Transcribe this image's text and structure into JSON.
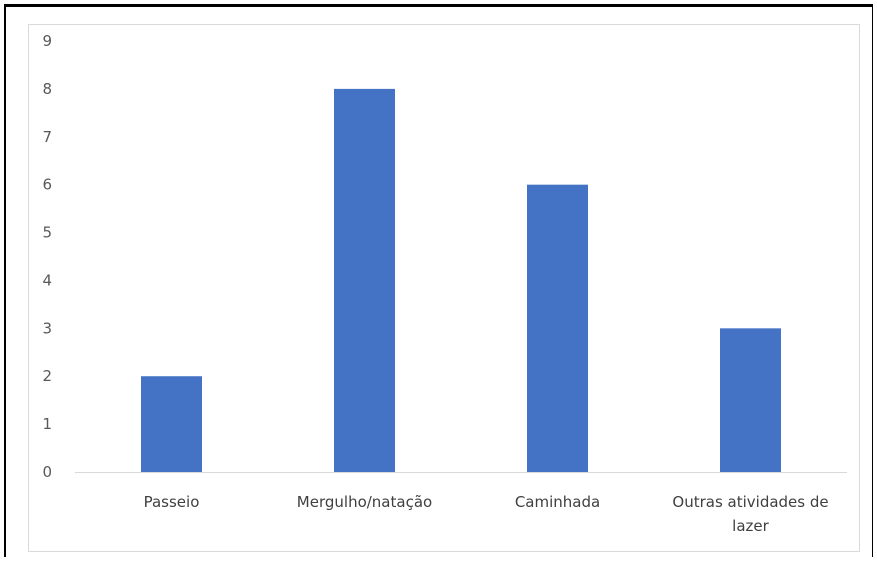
{
  "chart_data": {
    "type": "bar",
    "categories": [
      "Passeio",
      "Mergulho/natação",
      "Caminhada",
      "Outras atividades de lazer"
    ],
    "category_label_lines": [
      [
        "Passeio"
      ],
      [
        "Mergulho/natação"
      ],
      [
        "Caminhada"
      ],
      [
        "Outras atividades de",
        "lazer"
      ]
    ],
    "values": [
      2,
      8,
      6,
      3
    ],
    "ylim": [
      0,
      9
    ],
    "yticks": [
      "0",
      "1",
      "2",
      "3",
      "4",
      "5",
      "6",
      "7",
      "8",
      "9"
    ],
    "title": "",
    "xlabel": "",
    "ylabel": "",
    "grid": false,
    "bar_color": "#4472c4",
    "axis_color": "#d9d9d9"
  }
}
